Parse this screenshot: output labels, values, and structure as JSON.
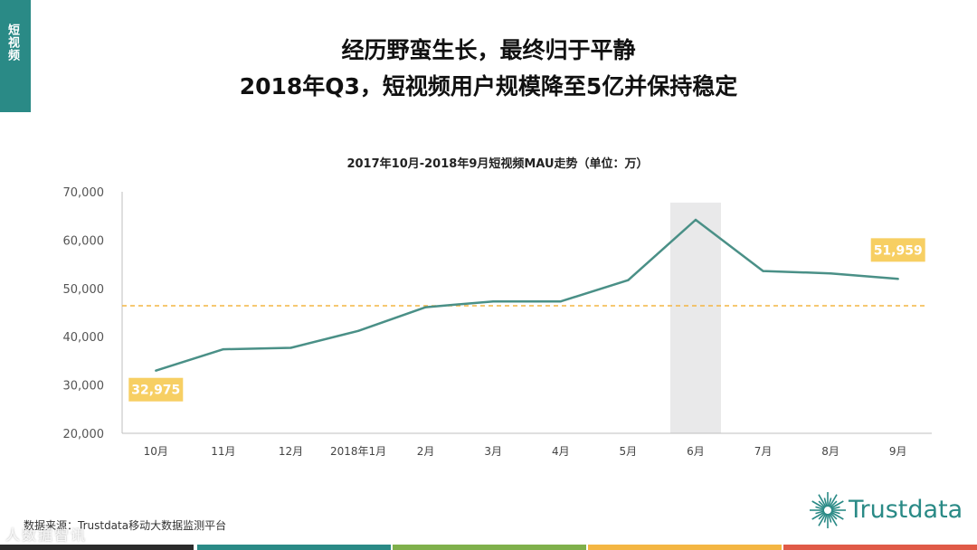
{
  "side_tab": {
    "label": "短视频"
  },
  "header": {
    "title_line1": "经历野蛮生长，最终归于平静",
    "title_line2": "2018年Q3，短视频用户规模降至5亿并保持稳定"
  },
  "chart_data": {
    "type": "line",
    "title": "2017年10月-2018年9月短视频MAU走势（单位：万）",
    "categories": [
      "10月",
      "11月",
      "12月",
      "2018年1月",
      "2月",
      "3月",
      "4月",
      "5月",
      "6月",
      "7月",
      "8月",
      "9月"
    ],
    "series": [
      {
        "values": [
          32975,
          37400,
          37700,
          41200,
          46100,
          47300,
          47300,
          51700,
          64200,
          53600,
          53100,
          51959
        ],
        "color": "#4a9087"
      }
    ],
    "ylim": [
      20000,
      70000
    ],
    "yticks": [
      {
        "value": 20000,
        "label": "20,000"
      },
      {
        "value": 30000,
        "label": "30,000"
      },
      {
        "value": 40000,
        "label": "40,000"
      },
      {
        "value": 50000,
        "label": "50,000"
      },
      {
        "value": 60000,
        "label": "60,000"
      },
      {
        "value": 70000,
        "label": "70,000"
      }
    ],
    "reference_line": {
      "value": 46400,
      "color": "#f4b642"
    },
    "highlight_category_index": 8,
    "annotations": [
      {
        "index": 0,
        "label": "32,975",
        "color": "#f7cf63"
      },
      {
        "index": 11,
        "label": "51,959",
        "color": "#f7cf63"
      }
    ],
    "grid": false,
    "xlabel": "",
    "ylabel": ""
  },
  "footer": {
    "source": "数据来源：Trustdata移动大数据监测平台",
    "logo_text": "Trustdata",
    "watermark": "人数据智讯"
  },
  "colors": {
    "accent": "#2a8a86",
    "bottom_bars": [
      "#2b2b2b",
      "#2a8a86",
      "#7fb04b",
      "#f4b642",
      "#e05a47"
    ]
  }
}
